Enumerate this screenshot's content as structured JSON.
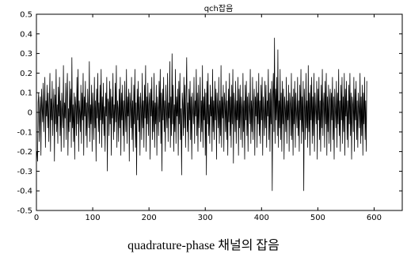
{
  "chart_data": {
    "type": "line",
    "title": "qch잡음",
    "caption": "quadrature-phase 채널의 잡음",
    "xlim": [
      0,
      650
    ],
    "ylim": [
      -0.5,
      0.5
    ],
    "xticks": [
      "0",
      "100",
      "200",
      "300",
      "400",
      "500",
      "600"
    ],
    "yticks": [
      "0.5",
      "0.4",
      "0.3",
      "0.2",
      "0.1",
      "0",
      "-0.1",
      "-0.2",
      "-0.3",
      "-0.4",
      "-0.5"
    ],
    "grid": false,
    "line_color": "#000000",
    "series": [
      {
        "values": [
          -0.2,
          -0.25,
          0.05,
          0.1,
          -0.15,
          0.0,
          0.08,
          -0.22,
          0.12,
          0.02,
          -0.05,
          0.15,
          -0.1,
          0.03,
          0.18,
          -0.18,
          0.06,
          -0.02,
          0.14,
          -0.08,
          0.1,
          -0.15,
          0.05,
          0.2,
          -0.2,
          0.07,
          -0.04,
          0.16,
          -0.12,
          0.02,
          0.12,
          -0.25,
          0.09,
          -0.06,
          0.22,
          -0.1,
          0.04,
          -0.16,
          0.13,
          -0.02,
          0.18,
          -0.12,
          0.06,
          -0.2,
          0.1,
          0.0,
          -0.08,
          0.24,
          -0.18,
          0.05,
          -0.03,
          0.15,
          -0.14,
          0.08,
          0.2,
          -0.22,
          0.02,
          -0.1,
          0.16,
          -0.05,
          0.12,
          -0.18,
          0.28,
          -0.08,
          0.04,
          -0.15,
          0.1,
          -0.24,
          0.08,
          0.03,
          -0.12,
          0.18,
          -0.06,
          0.22,
          -0.2,
          0.06,
          0.0,
          -0.1,
          0.14,
          -0.16,
          0.1,
          -0.04,
          0.2,
          -0.22,
          0.08,
          -0.02,
          0.16,
          -0.12,
          0.05,
          -0.18,
          0.12,
          0.02,
          -0.08,
          0.26,
          -0.15,
          0.04,
          -0.06,
          0.14,
          -0.2,
          0.1,
          0.0,
          -0.14,
          0.18,
          -0.08,
          0.06,
          -0.25,
          0.12,
          -0.03,
          0.2,
          -0.1,
          0.05,
          -0.16,
          0.14,
          -0.04,
          0.22,
          -0.18,
          0.08,
          -0.06,
          0.15,
          -0.12,
          0.03,
          -0.2,
          0.1,
          -0.02,
          0.18,
          -0.3,
          0.07,
          0.05,
          -0.12,
          0.16,
          -0.06,
          0.12,
          -0.22,
          0.08,
          -0.03,
          0.2,
          -0.14,
          0.04,
          -0.1,
          0.15,
          -0.05,
          0.24,
          -0.18,
          0.06,
          0.02,
          -0.15,
          0.12,
          -0.08,
          0.18,
          -0.22,
          0.1,
          -0.04,
          0.14,
          -0.12,
          0.06,
          -0.2,
          0.16,
          0.0,
          -0.1,
          0.22,
          -0.16,
          0.08,
          -0.02,
          0.12,
          -0.25,
          0.1,
          0.04,
          -0.08,
          0.18,
          -0.14,
          0.06,
          -0.2,
          0.14,
          -0.06,
          0.22,
          -0.18,
          0.05,
          -0.32,
          0.12,
          -0.04,
          0.16,
          -0.1,
          0.08,
          -0.22,
          0.1,
          0.02,
          -0.14,
          0.2,
          -0.08,
          0.06,
          -0.18,
          0.14,
          -0.03,
          0.24,
          -0.2,
          0.08,
          -0.06,
          0.15,
          -0.12,
          0.04,
          0.1,
          -0.24,
          0.12,
          -0.02,
          0.18,
          -0.14,
          0.06,
          -0.1,
          0.2,
          -0.18,
          0.05,
          -0.06,
          0.14,
          -0.22,
          0.08,
          0.02,
          -0.12,
          0.16,
          -0.05,
          0.22,
          -0.16,
          0.1,
          -0.3,
          0.12,
          -0.04,
          0.18,
          -0.1,
          0.06,
          -0.2,
          0.14,
          0.0,
          -0.08,
          0.2,
          -0.15,
          0.05,
          -0.03,
          0.26,
          -0.18,
          0.08,
          -0.12,
          0.3,
          -0.06,
          0.14,
          -0.2,
          0.04,
          -0.1,
          0.22,
          -0.16,
          0.08,
          -0.02,
          0.12,
          -0.22,
          0.16,
          -0.06,
          0.2,
          -0.14,
          0.02,
          -0.32,
          0.1,
          0.04,
          -0.12,
          0.18,
          -0.08,
          0.14,
          -0.18,
          0.06,
          0.28,
          -0.1,
          0.05,
          -0.2,
          0.12,
          -0.04,
          0.16,
          -0.14,
          0.08,
          -0.24,
          0.1,
          0.0,
          -0.06,
          0.18,
          -0.16,
          0.06,
          -0.02,
          0.22,
          -0.12,
          0.1,
          -0.2,
          0.14,
          -0.08,
          0.04,
          0.18,
          -0.15,
          0.06,
          -0.1,
          0.24,
          -0.18,
          0.08,
          -0.04,
          0.12,
          -0.22,
          0.1,
          -0.32,
          0.16,
          -0.06,
          0.2,
          -0.12,
          0.04,
          -0.16,
          0.14,
          -0.02,
          0.08,
          -0.2,
          0.22,
          -0.1,
          0.06,
          -0.14,
          0.16,
          -0.04,
          0.12,
          -0.24,
          0.1,
          0.02,
          -0.08,
          0.18,
          -0.16,
          0.06,
          -0.12,
          0.24,
          -0.18,
          0.08,
          -0.03,
          0.14,
          -0.2,
          0.1,
          0.04,
          -0.1,
          0.16,
          -0.14,
          0.06,
          -0.22,
          0.12,
          -0.05,
          0.2,
          -0.12,
          0.08,
          -0.18,
          0.14,
          -0.06,
          0.22,
          -0.26,
          0.1,
          0.02,
          -0.1,
          0.16,
          -0.16,
          0.06,
          -0.04,
          0.18,
          -0.22,
          0.12,
          -0.08,
          0.14,
          -0.14,
          0.08,
          0.02,
          -0.18,
          0.2,
          -0.1,
          0.06,
          -0.24,
          0.14,
          -0.04,
          0.16,
          -0.12,
          0.08,
          -0.2,
          0.1,
          0.02,
          -0.06,
          0.22,
          -0.16,
          0.06,
          -0.1,
          0.18,
          -0.14,
          0.04,
          0.12,
          -0.22,
          0.08,
          -0.02,
          0.16,
          -0.18,
          0.1,
          -0.06,
          0.2,
          -0.12,
          0.06,
          -0.16,
          0.14,
          -0.04,
          0.18,
          -0.22,
          0.08,
          0.0,
          -0.12,
          0.16,
          -0.08,
          0.14,
          -0.18,
          0.06,
          -0.02,
          0.22,
          -0.14,
          0.1,
          -0.2,
          0.12,
          -0.06,
          0.16,
          -0.4,
          0.08,
          0.2,
          -0.1,
          0.38,
          -0.16,
          0.12,
          -0.04,
          0.18,
          -0.12,
          0.32,
          -0.18,
          0.06,
          -0.08,
          0.22,
          -0.14,
          0.1,
          -0.2,
          0.16,
          -0.06,
          0.12,
          -0.24,
          0.08,
          0.02,
          -0.1,
          0.18,
          -0.16,
          0.06,
          -0.04,
          0.14,
          -0.2,
          0.1,
          0.04,
          -0.12,
          0.2,
          -0.14,
          0.08,
          -0.22,
          0.12,
          -0.06,
          0.16,
          -0.18,
          0.1,
          0.0,
          -0.08,
          0.18,
          -0.12,
          0.06,
          -0.2,
          0.14,
          -0.04,
          0.22,
          -0.16,
          0.08,
          -0.1,
          0.16,
          -0.4,
          0.12,
          0.02,
          -0.14,
          0.2,
          -0.08,
          0.06,
          -0.18,
          0.24,
          -0.1,
          0.1,
          -0.22,
          0.14,
          -0.04,
          0.18,
          -0.16,
          0.08,
          -0.12,
          0.2,
          -0.2,
          0.1,
          0.02,
          -0.06,
          0.16,
          -0.24,
          0.12,
          -0.04,
          0.18,
          -0.14,
          0.06,
          -0.2,
          0.14,
          -0.08,
          0.22,
          -0.12,
          0.04,
          0.1,
          -0.18,
          0.16,
          -0.06,
          0.2,
          -0.22,
          0.08,
          -0.1,
          0.14,
          -0.16,
          0.06,
          0.12,
          -0.2,
          0.1,
          -0.04,
          0.18,
          -0.14,
          0.08,
          -0.24,
          0.12,
          0.02,
          -0.08,
          0.16,
          -0.18,
          0.1,
          -0.06,
          0.22,
          -0.12,
          0.06,
          -0.2,
          0.14,
          -0.04,
          0.18,
          -0.16,
          0.08,
          -0.1,
          0.2,
          -0.22,
          0.12,
          -0.02,
          0.16,
          -0.14,
          0.06,
          -0.18,
          0.14,
          -0.06,
          0.2,
          -0.12,
          0.1,
          -0.24,
          0.08,
          0.04,
          -0.1,
          0.18,
          -0.2,
          0.12,
          -0.04,
          0.16,
          -0.14,
          0.06,
          -0.18,
          0.1,
          0.02,
          -0.08,
          0.2,
          -0.16,
          0.08,
          -0.12,
          0.14,
          -0.22,
          0.1,
          -0.06,
          0.18,
          -0.14,
          0.06,
          -0.2,
          0.16
        ]
      }
    ]
  }
}
